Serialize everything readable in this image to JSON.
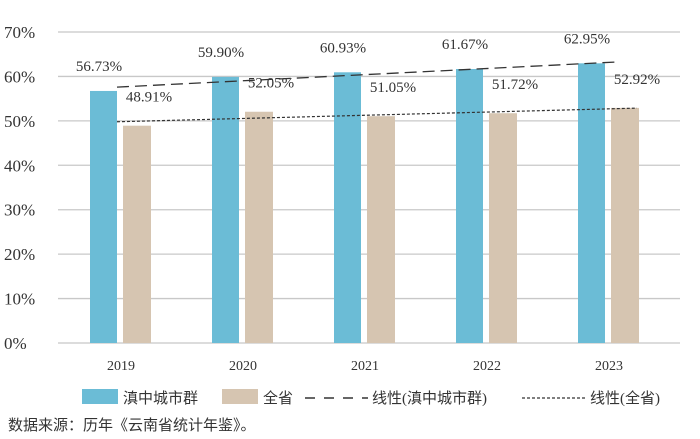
{
  "chart_data": {
    "type": "bar",
    "categories": [
      "2019",
      "2020",
      "2021",
      "2022",
      "2023"
    ],
    "series": [
      {
        "name": "滇中城市群",
        "color": "#6bbcd6",
        "values": [
          56.73,
          59.9,
          60.93,
          61.67,
          62.95
        ],
        "labels": [
          "56.73%",
          "59.90%",
          "60.93%",
          "61.67%",
          "62.95%"
        ]
      },
      {
        "name": "全省",
        "color": "#d6c5b1",
        "values": [
          48.91,
          52.05,
          51.05,
          51.72,
          52.92
        ],
        "labels": [
          "48.91%",
          "52.05%",
          "51.05%",
          "51.72%",
          "52.92%"
        ]
      }
    ],
    "trendlines": [
      {
        "name": "线性(滇中城市群)",
        "of": "滇中城市群",
        "style": "dashed"
      },
      {
        "name": "线性(全省)",
        "of": "全省",
        "style": "dotted"
      }
    ],
    "yticks": [
      "0%",
      "10%",
      "20%",
      "30%",
      "40%",
      "50%",
      "60%",
      "70%"
    ],
    "ylim": [
      0,
      70
    ],
    "grid": true,
    "legend": "bottom",
    "xlabel": "",
    "ylabel": "",
    "title": ""
  },
  "source_note": "数据来源：历年《云南省统计年鉴》。"
}
